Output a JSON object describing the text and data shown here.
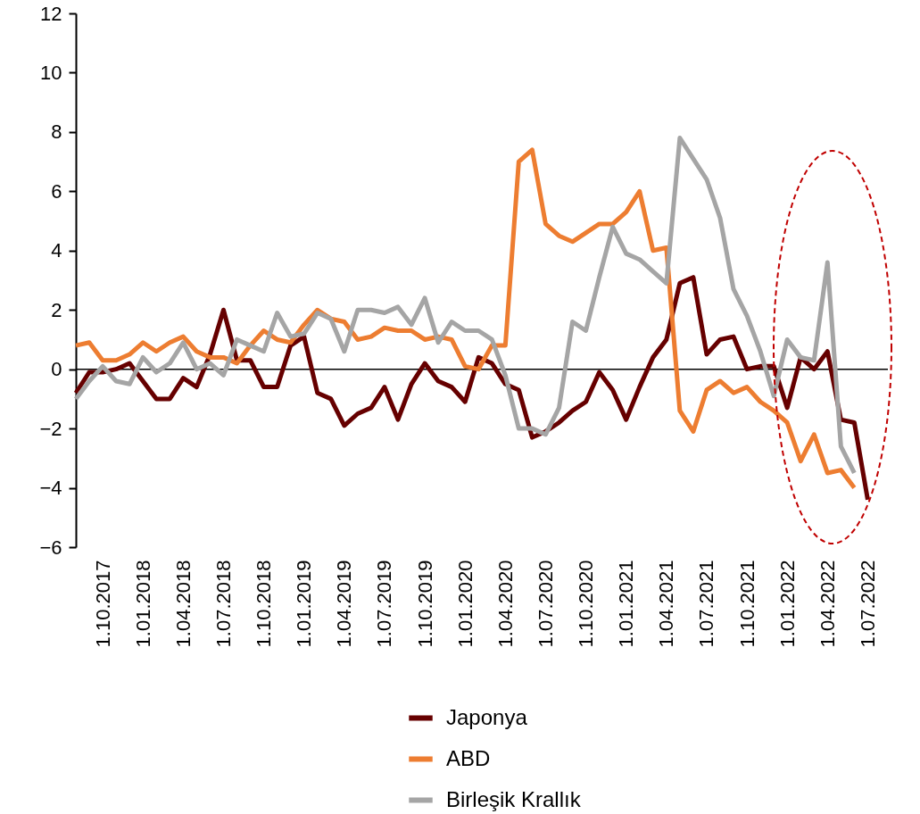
{
  "chart_data": {
    "type": "line",
    "categories": [
      null,
      null,
      "1.10.2017",
      null,
      null,
      "1.01.2018",
      null,
      null,
      "1.04.2018",
      null,
      null,
      "1.07.2018",
      null,
      null,
      "1.10.2018",
      null,
      null,
      "1.01.2019",
      null,
      null,
      "1.04.2019",
      null,
      null,
      "1.07.2019",
      null,
      null,
      "1.10.2019",
      null,
      null,
      "1.01.2020",
      null,
      null,
      "1.04.2020",
      null,
      null,
      "1.07.2020",
      null,
      null,
      "1.10.2020",
      null,
      null,
      "1.01.2021",
      null,
      null,
      "1.04.2021",
      null,
      null,
      "1.07.2021",
      null,
      null,
      "1.10.2021",
      null,
      null,
      "1.01.2022",
      null,
      null,
      "1.04.2022",
      null,
      null,
      "1.07.2022"
    ],
    "series": [
      {
        "name": "Japonya",
        "color": "#660000",
        "values": [
          -0.8,
          -0.1,
          -0.1,
          0.0,
          0.2,
          -0.4,
          -1.0,
          -1.0,
          -0.3,
          -0.6,
          0.5,
          2.0,
          0.3,
          0.3,
          -0.6,
          -0.6,
          0.8,
          1.1,
          -0.8,
          -1.0,
          -1.9,
          -1.5,
          -1.3,
          -0.6,
          -1.7,
          -0.5,
          0.2,
          -0.4,
          -0.6,
          -1.1,
          0.4,
          0.2,
          -0.5,
          -0.7,
          -2.3,
          -2.1,
          -1.8,
          -1.4,
          -1.1,
          -0.1,
          -0.7,
          -1.7,
          -0.6,
          0.4,
          1.0,
          2.9,
          3.1,
          0.5,
          1.0,
          1.1,
          0.0,
          0.1,
          0.1,
          -1.3,
          0.4,
          0.0,
          0.6,
          -1.7,
          -1.8,
          -4.4
        ]
      },
      {
        "name": "ABD",
        "color": "#ed7d31",
        "values": [
          0.8,
          0.9,
          0.3,
          0.3,
          0.5,
          0.9,
          0.6,
          0.9,
          1.1,
          0.6,
          0.4,
          0.4,
          0.2,
          0.8,
          1.3,
          1.0,
          0.9,
          1.5,
          2.0,
          1.7,
          1.6,
          1.0,
          1.1,
          1.4,
          1.3,
          1.3,
          1.0,
          1.1,
          1.0,
          0.1,
          0.0,
          0.8,
          0.8,
          7.0,
          7.4,
          4.9,
          4.5,
          4.3,
          4.6,
          4.9,
          4.9,
          5.3,
          6.0,
          4.0,
          4.1,
          -1.4,
          -2.1,
          -0.7,
          -0.4,
          -0.8,
          -0.6,
          -1.1,
          -1.4,
          -1.8,
          -3.1,
          -2.2,
          -3.5,
          -3.4,
          -4.0,
          null
        ]
      },
      {
        "name": "Birleşik Krallık",
        "color": "#a5a5a5",
        "values": [
          -1.0,
          -0.4,
          0.1,
          -0.4,
          -0.5,
          0.4,
          -0.1,
          0.2,
          0.9,
          0.0,
          0.2,
          -0.2,
          1.0,
          0.8,
          0.6,
          1.9,
          1.1,
          1.2,
          1.9,
          1.7,
          0.6,
          2.0,
          2.0,
          1.9,
          2.1,
          1.5,
          2.4,
          0.9,
          1.6,
          1.3,
          1.3,
          1.0,
          -0.2,
          -2.0,
          -2.0,
          -2.2,
          -1.3,
          1.6,
          1.3,
          3.1,
          4.8,
          3.9,
          3.7,
          3.3,
          2.9,
          7.8,
          7.1,
          6.4,
          5.1,
          2.7,
          1.8,
          0.6,
          -0.9,
          1.0,
          0.4,
          0.3,
          3.6,
          -2.6,
          -3.5,
          null
        ]
      }
    ],
    "ylim": [
      -6,
      12
    ],
    "yticks": [
      -6,
      -4,
      -2,
      0,
      2,
      4,
      6,
      8,
      10,
      12
    ],
    "ref_lines": [
      {
        "axis": "y",
        "value": 0,
        "color": "#000000"
      }
    ],
    "legend": "bottom",
    "line_style": "solid"
  }
}
